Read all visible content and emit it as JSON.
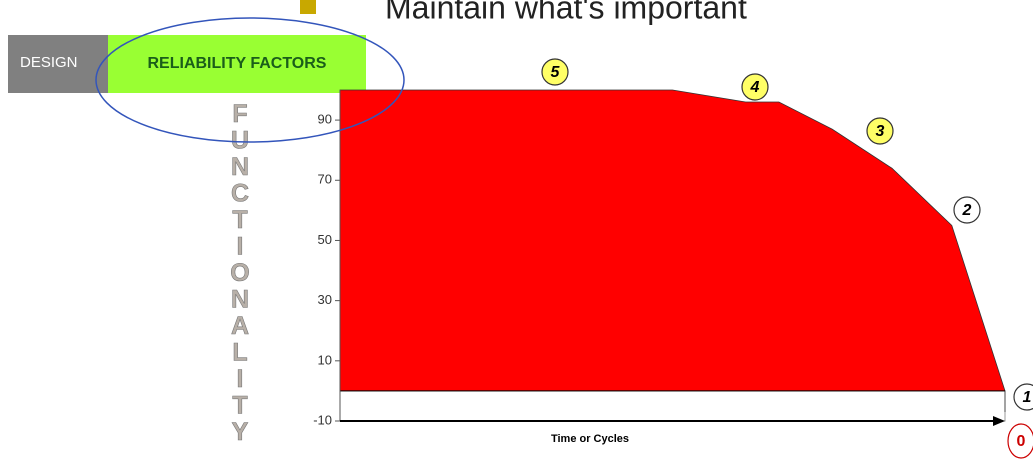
{
  "slide": {
    "heading": "Maintain what's important",
    "tabs": [
      "DESIGN",
      "RELIABILITY FACTORS"
    ]
  },
  "chart_data": {
    "type": "area",
    "y_label": "FUNCTIONALITY",
    "x_label": "Time or Cycles",
    "x": [
      0,
      50,
      61,
      66,
      74,
      83,
      92,
      100,
      100
    ],
    "values": [
      100,
      100,
      96,
      96,
      87,
      74,
      55,
      0,
      -7
    ],
    "color": "#ff0000",
    "xlim": [
      0,
      100
    ],
    "ylim": [
      -10,
      100
    ],
    "yticks": [
      -10,
      10,
      30,
      50,
      70,
      90
    ],
    "annotations": [
      {
        "text": "5",
        "color": "#ffff66"
      },
      {
        "text": "4",
        "color": "#ffff66"
      },
      {
        "text": "3",
        "color": "#ffff66"
      },
      {
        "text": "2",
        "color": "#ffffff"
      },
      {
        "text": "1",
        "color": "#ffffff"
      },
      {
        "text": "0",
        "color": "#ffffff"
      }
    ]
  }
}
